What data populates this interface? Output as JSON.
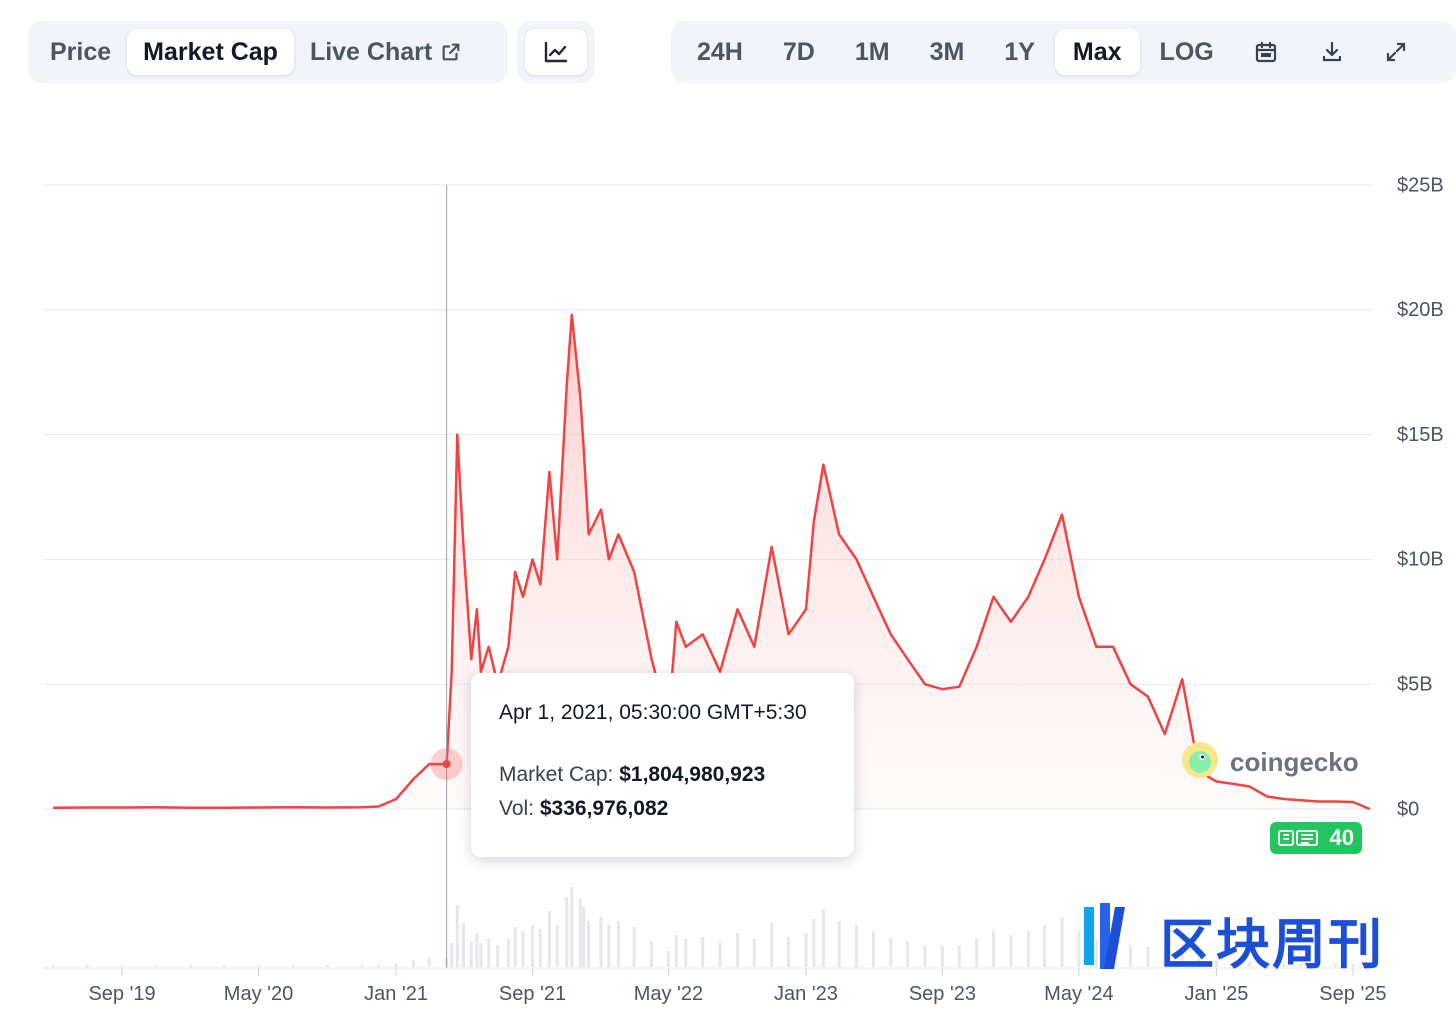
{
  "toolbar": {
    "left_tabs": [
      {
        "label": "Price",
        "active": false
      },
      {
        "label": "Market Cap",
        "active": true
      },
      {
        "label": "Live Chart",
        "active": false,
        "icon": "external-link-icon"
      }
    ],
    "chart_type_icon": "line-chart-icon",
    "range_tabs": [
      {
        "label": "24H",
        "active": false
      },
      {
        "label": "7D",
        "active": false
      },
      {
        "label": "1M",
        "active": false
      },
      {
        "label": "3M",
        "active": false
      },
      {
        "label": "1Y",
        "active": false
      },
      {
        "label": "Max",
        "active": true
      },
      {
        "label": "LOG",
        "active": false
      }
    ],
    "right_icons": [
      "calendar-icon",
      "download-icon",
      "expand-icon"
    ]
  },
  "tooltip": {
    "timestamp": "Apr 1, 2021, 05:30:00 GMT+5:30",
    "market_cap_label": "Market Cap:",
    "market_cap_value": "$1,804,980,923",
    "volume_label": "Vol:",
    "volume_value": "$336,976,082"
  },
  "news_badge": {
    "count": "40",
    "color": "#22c55e"
  },
  "logo": {
    "text": "coingecko"
  },
  "watermark": {
    "text": "区块周刊",
    "color": "#1d4ed8"
  },
  "colors": {
    "line": "#ef4444",
    "area_top": "#fecaca",
    "grid": "#e5e7eb",
    "axis_text": "#4b5563"
  },
  "chart_data": {
    "type": "area",
    "title": "",
    "xlabel": "",
    "ylabel": "",
    "ylim": [
      0,
      25
    ],
    "y_unit": "billion USD",
    "y_ticks": [
      "$0",
      "$5B",
      "$10B",
      "$15B",
      "$20B",
      "$25B"
    ],
    "x_ticks": [
      "Sep '19",
      "May '20",
      "Jan '21",
      "Sep '21",
      "May '22",
      "Jan '23",
      "Sep '23",
      "May '24",
      "Jan '25",
      "Sep '25"
    ],
    "grid": true,
    "series": [
      {
        "x": [
          "2019-05",
          "2019-07",
          "2019-09",
          "2019-11",
          "2020-01",
          "2020-03",
          "2020-05",
          "2020-07",
          "2020-09",
          "2020-11",
          "2020-12",
          "2021-01",
          "2021-02",
          "2021-03",
          "2021-04",
          "2021-04-10",
          "2021-04-20",
          "2021-05",
          "2021-05-15",
          "2021-05-25",
          "2021-06",
          "2021-06-15",
          "2021-07",
          "2021-07-20",
          "2021-08",
          "2021-08-15",
          "2021-09",
          "2021-09-15",
          "2021-10",
          "2021-10-15",
          "2021-11",
          "2021-11-10",
          "2021-11-25",
          "2021-12",
          "2021-12-10",
          "2022-01",
          "2022-01-15",
          "2022-02",
          "2022-03",
          "2022-04",
          "2022-05",
          "2022-05-15",
          "2022-06",
          "2022-07",
          "2022-08",
          "2022-09",
          "2022-10",
          "2022-11",
          "2022-12",
          "2023-01",
          "2023-01-15",
          "2023-02",
          "2023-03",
          "2023-04",
          "2023-05",
          "2023-06",
          "2023-07",
          "2023-08",
          "2023-09",
          "2023-10",
          "2023-11",
          "2023-12",
          "2024-01",
          "2024-02",
          "2024-03",
          "2024-04",
          "2024-05",
          "2024-06",
          "2024-07",
          "2024-08",
          "2024-09",
          "2024-10",
          "2024-11",
          "2024-12",
          "2025-01",
          "2025-02",
          "2025-03",
          "2025-04",
          "2025-05",
          "2025-06",
          "2025-07",
          "2025-08",
          "2025-09",
          "2025-10"
        ],
        "y": [
          0.05,
          0.06,
          0.06,
          0.07,
          0.05,
          0.05,
          0.06,
          0.07,
          0.06,
          0.07,
          0.1,
          0.4,
          1.2,
          1.8,
          1.8,
          5.5,
          15.0,
          10.5,
          6.0,
          8.0,
          5.5,
          6.5,
          5.0,
          6.5,
          9.5,
          8.5,
          10.0,
          9.0,
          13.5,
          10.0,
          17.0,
          19.8,
          16.5,
          14.5,
          11.0,
          12.0,
          10.0,
          11.0,
          9.5,
          6.0,
          3.5,
          7.5,
          6.5,
          7.0,
          5.5,
          8.0,
          6.5,
          10.5,
          7.0,
          8.0,
          11.5,
          13.8,
          11.0,
          10.0,
          8.5,
          7.0,
          6.0,
          5.0,
          4.8,
          4.9,
          6.5,
          8.5,
          7.5,
          8.5,
          10.0,
          11.8,
          8.5,
          6.5,
          6.5,
          5.0,
          4.5,
          3.0,
          5.2,
          1.5,
          1.1,
          1.0,
          0.9,
          0.5,
          0.4,
          0.35,
          0.3,
          0.3,
          0.28,
          0.0
        ]
      }
    ],
    "highlight": {
      "x": "2021-04-01",
      "y": 1.8,
      "market_cap": "$1,804,980,923",
      "volume": "$336,976,082"
    }
  }
}
